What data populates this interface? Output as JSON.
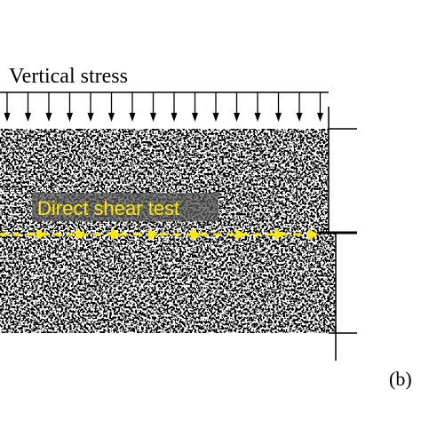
{
  "labels": {
    "vertical_stress": "Vertical stress",
    "test_name": "Direct shear test",
    "panel": "(b)"
  }
}
